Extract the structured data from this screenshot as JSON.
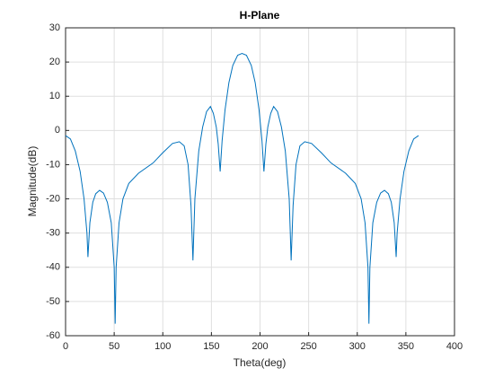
{
  "chart_data": {
    "type": "line",
    "title": "H-Plane",
    "x_label": "Theta(deg)",
    "y_label": "Magnitude(dB)",
    "xlim": [
      0,
      400
    ],
    "xticks": [
      0,
      50,
      100,
      150,
      200,
      250,
      300,
      350,
      400
    ],
    "ylim": [
      -60,
      30
    ],
    "yticks": [
      -60,
      -50,
      -40,
      -30,
      -20,
      -10,
      0,
      10,
      20,
      30
    ],
    "grid": true,
    "series": [
      {
        "color": "#0072bd",
        "x": [
          0,
          5,
          10,
          15,
          19,
          22,
          23,
          25,
          28,
          31,
          35,
          39,
          43,
          47,
          50,
          51,
          52,
          55,
          59,
          65,
          75,
          90,
          100,
          110,
          117,
          122,
          126,
          129,
          131,
          133,
          137,
          141,
          145,
          149,
          152,
          155,
          157,
          159,
          161,
          164,
          168,
          172,
          177,
          181.5,
          186,
          191,
          195,
          199,
          202,
          204,
          206,
          208,
          211,
          214,
          218,
          222,
          226,
          230,
          232,
          234,
          237,
          241,
          246,
          253,
          263,
          273,
          288,
          298,
          304,
          308,
          311,
          312,
          313,
          316,
          320,
          324,
          328,
          332,
          335,
          338,
          340,
          341,
          344,
          348,
          353,
          358,
          363
        ],
        "values": [
          -1.5,
          -2.5,
          -6,
          -12,
          -20,
          -30,
          -37,
          -27,
          -21,
          -18.5,
          -17.5,
          -18.3,
          -21,
          -27,
          -40,
          -56.5,
          -40,
          -27,
          -20,
          -15.5,
          -12.5,
          -9.5,
          -6.5,
          -3.8,
          -3.3,
          -4.5,
          -10,
          -22,
          -38,
          -20,
          -6,
          1,
          5.5,
          7,
          5,
          1,
          -4,
          -12,
          -3,
          6,
          14,
          19,
          22,
          22.5,
          22,
          19,
          14,
          6,
          -3,
          -12,
          -4,
          1,
          5,
          7,
          5.5,
          1,
          -6,
          -20,
          -38,
          -22,
          -10,
          -4.5,
          -3.3,
          -3.8,
          -6.5,
          -9.5,
          -12.5,
          -15.5,
          -20,
          -27,
          -40,
          -56.5,
          -40,
          -27,
          -21,
          -18.3,
          -17.5,
          -18.5,
          -21,
          -27,
          -37,
          -30,
          -20,
          -12,
          -6,
          -2.5,
          -1.5
        ]
      }
    ]
  }
}
